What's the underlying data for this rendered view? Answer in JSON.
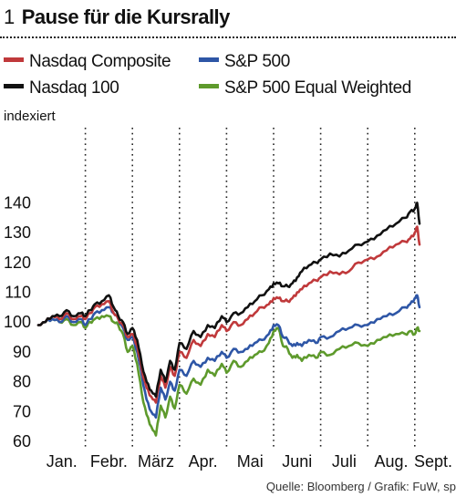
{
  "title": {
    "number": "1",
    "text": "Pause für die Kursrally"
  },
  "legend": [
    {
      "label": "Nasdaq Composite",
      "color": "#c0393b"
    },
    {
      "label": "S&P 500",
      "color": "#2e56a6"
    },
    {
      "label": "Nasdaq 100",
      "color": "#111111"
    },
    {
      "label": "S&P 500 Equal Weighted",
      "color": "#5e9a2c"
    }
  ],
  "unit_label": "indexiert",
  "source": "Quelle: Bloomberg / Grafik: FuW, sp",
  "chart_data": {
    "type": "line",
    "ylabel": "indexiert",
    "ylim": [
      60,
      145
    ],
    "yticks": [
      60,
      70,
      80,
      90,
      100,
      110,
      120,
      130,
      140
    ],
    "xlim": [
      0,
      8.4
    ],
    "xticks": [
      {
        "label": "Jan.",
        "x": 0.5
      },
      {
        "label": "Febr.",
        "x": 1.5
      },
      {
        "label": "März",
        "x": 2.5
      },
      {
        "label": "Apr.",
        "x": 3.5
      },
      {
        "label": "Mai",
        "x": 4.5
      },
      {
        "label": "Juni",
        "x": 5.5
      },
      {
        "label": "Juli",
        "x": 6.5
      },
      {
        "label": "Aug.",
        "x": 7.5
      },
      {
        "label": "Sept.",
        "x": 8.5
      }
    ],
    "grid": "vertical dotted at month boundaries",
    "x_grid": [
      1,
      2,
      3,
      4,
      5,
      6,
      7,
      8
    ],
    "series": [
      {
        "name": "S&P 500 Equal Weighted",
        "color": "#5e9a2c",
        "x": [
          0,
          0.15,
          0.3,
          0.45,
          0.6,
          0.75,
          0.9,
          1.0,
          1.1,
          1.2,
          1.35,
          1.5,
          1.6,
          1.7,
          1.8,
          1.9,
          2.0,
          2.1,
          2.2,
          2.3,
          2.4,
          2.5,
          2.6,
          2.7,
          2.8,
          2.9,
          3.0,
          3.15,
          3.3,
          3.45,
          3.6,
          3.75,
          3.9,
          4.0,
          4.15,
          4.3,
          4.45,
          4.6,
          4.75,
          4.9,
          5.0,
          5.1,
          5.2,
          5.3,
          5.4,
          5.5,
          5.6,
          5.75,
          5.9,
          6.0,
          6.2,
          6.4,
          6.6,
          6.8,
          7.0,
          7.2,
          7.4,
          7.6,
          7.8,
          7.9,
          8.0,
          8.05,
          8.1
        ],
        "values": [
          99,
          100,
          101,
          100,
          101,
          99,
          100,
          98,
          100,
          101,
          102,
          102,
          100,
          99,
          96,
          90,
          92,
          86,
          76,
          69,
          65,
          62,
          72,
          68,
          75,
          71,
          79,
          76,
          81,
          79,
          84,
          82,
          86,
          83,
          87,
          85,
          87,
          89,
          90,
          93,
          97,
          98,
          92,
          91,
          88,
          89,
          87,
          89,
          88,
          90,
          89,
          91,
          92,
          93,
          92,
          94,
          95,
          96,
          96,
          97,
          96,
          98,
          97
        ]
      },
      {
        "name": "S&P 500",
        "color": "#2e56a6",
        "x": [
          0,
          0.15,
          0.3,
          0.45,
          0.6,
          0.75,
          0.9,
          1.0,
          1.1,
          1.2,
          1.35,
          1.5,
          1.6,
          1.7,
          1.8,
          1.9,
          2.0,
          2.1,
          2.2,
          2.3,
          2.4,
          2.5,
          2.6,
          2.7,
          2.8,
          2.9,
          3.0,
          3.15,
          3.3,
          3.45,
          3.6,
          3.75,
          3.9,
          4.0,
          4.15,
          4.3,
          4.45,
          4.6,
          4.75,
          4.9,
          5.0,
          5.1,
          5.2,
          5.3,
          5.4,
          5.5,
          5.6,
          5.75,
          5.9,
          6.0,
          6.2,
          6.4,
          6.6,
          6.8,
          7.0,
          7.2,
          7.4,
          7.6,
          7.8,
          7.9,
          8.0,
          8.05,
          8.1
        ],
        "values": [
          99,
          100,
          101,
          100,
          102,
          100,
          101,
          99,
          101,
          103,
          104,
          105,
          103,
          101,
          98,
          94,
          95,
          90,
          82,
          74,
          70,
          68,
          78,
          74,
          80,
          77,
          84,
          82,
          87,
          85,
          88,
          87,
          90,
          88,
          91,
          90,
          91,
          93,
          94,
          96,
          99,
          99,
          95,
          94,
          92,
          93,
          92,
          94,
          93,
          95,
          95,
          97,
          98,
          99,
          99,
          101,
          102,
          103,
          105,
          106,
          108,
          109,
          105
        ]
      },
      {
        "name": "Nasdaq Composite",
        "color": "#c0393b",
        "x": [
          0,
          0.15,
          0.3,
          0.45,
          0.6,
          0.75,
          0.9,
          1.0,
          1.1,
          1.2,
          1.35,
          1.5,
          1.6,
          1.7,
          1.8,
          1.9,
          2.0,
          2.1,
          2.2,
          2.3,
          2.4,
          2.5,
          2.6,
          2.7,
          2.8,
          2.9,
          3.0,
          3.15,
          3.3,
          3.45,
          3.6,
          3.75,
          3.9,
          4.0,
          4.15,
          4.3,
          4.45,
          4.6,
          4.75,
          4.9,
          5.0,
          5.1,
          5.2,
          5.3,
          5.4,
          5.5,
          5.6,
          5.75,
          5.9,
          6.0,
          6.2,
          6.4,
          6.6,
          6.8,
          7.0,
          7.2,
          7.4,
          7.6,
          7.8,
          7.9,
          8.0,
          8.05,
          8.1
        ],
        "values": [
          99,
          100,
          102,
          101,
          103,
          101,
          102,
          101,
          103,
          105,
          106,
          107,
          103,
          101,
          99,
          95,
          96,
          92,
          84,
          78,
          75,
          73,
          82,
          78,
          85,
          82,
          90,
          88,
          94,
          92,
          96,
          95,
          99,
          97,
          100,
          99,
          101,
          103,
          105,
          106,
          108,
          108,
          107,
          107,
          108,
          110,
          111,
          113,
          114,
          115,
          117,
          116,
          117,
          120,
          121,
          122,
          124,
          126,
          127,
          128,
          130,
          132,
          126
        ]
      },
      {
        "name": "Nasdaq 100",
        "color": "#111111",
        "x": [
          0,
          0.15,
          0.3,
          0.45,
          0.6,
          0.75,
          0.9,
          1.0,
          1.1,
          1.2,
          1.35,
          1.5,
          1.6,
          1.7,
          1.8,
          1.9,
          2.0,
          2.1,
          2.2,
          2.3,
          2.4,
          2.5,
          2.6,
          2.7,
          2.8,
          2.9,
          3.0,
          3.15,
          3.3,
          3.45,
          3.6,
          3.75,
          3.9,
          4.0,
          4.15,
          4.3,
          4.45,
          4.6,
          4.75,
          4.9,
          5.0,
          5.1,
          5.2,
          5.3,
          5.4,
          5.5,
          5.6,
          5.75,
          5.9,
          6.0,
          6.2,
          6.4,
          6.6,
          6.8,
          7.0,
          7.2,
          7.4,
          7.6,
          7.8,
          7.9,
          8.0,
          8.05,
          8.1
        ],
        "values": [
          99,
          100,
          102,
          102,
          104,
          102,
          103,
          102,
          104,
          106,
          107,
          109,
          105,
          102,
          100,
          96,
          98,
          94,
          86,
          80,
          77,
          75,
          84,
          80,
          87,
          84,
          93,
          91,
          97,
          95,
          99,
          98,
          102,
          100,
          103,
          103,
          105,
          107,
          109,
          111,
          113,
          113,
          112,
          112,
          113,
          115,
          117,
          119,
          120,
          121,
          123,
          122,
          124,
          126,
          127,
          129,
          131,
          133,
          135,
          137,
          138,
          140,
          133
        ]
      }
    ]
  }
}
